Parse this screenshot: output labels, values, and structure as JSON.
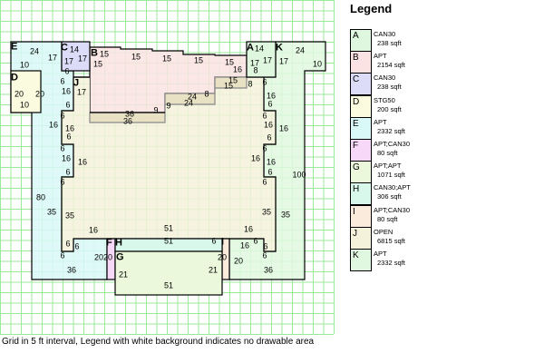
{
  "legend": {
    "title": "Legend",
    "items": [
      {
        "letter": "A",
        "use": "CAN30",
        "area": "238 sqft",
        "color": "#dff7df"
      },
      {
        "letter": "B",
        "use": "APT",
        "area": "2154 sqft",
        "color": "#fbe3e3"
      },
      {
        "letter": "C",
        "use": "CAN30",
        "area": "238 sqft",
        "color": "#dcdcf8"
      },
      {
        "letter": "D",
        "use": "STG50",
        "area": "200 sqft",
        "color": "#fbfbdf"
      },
      {
        "letter": "E",
        "use": "APT",
        "area": "2332 sqft",
        "color": "#d9f8f8"
      },
      {
        "letter": "F",
        "use": "APT;CAN30",
        "area": "80 sqft",
        "color": "#f8d8f8"
      },
      {
        "letter": "G",
        "use": "APT;APT",
        "area": "1071 sqft",
        "color": "#ecf8dc"
      },
      {
        "letter": "H",
        "use": "CAN30;APT",
        "area": "306 sqft",
        "color": "#d8f8ec"
      },
      {
        "letter": "I",
        "use": "APT;CAN30",
        "area": "80 sqft",
        "color": "#fbebdc"
      },
      {
        "letter": "J",
        "use": "OPEN",
        "area": "6815 sqft",
        "color": "#f4f2da"
      },
      {
        "letter": "K",
        "use": "APT",
        "area": "2332 sqft",
        "color": "#e0f8e0"
      }
    ]
  },
  "labels": [
    "E",
    "24",
    "17",
    "10",
    "C",
    "14",
    "17",
    "17",
    "6",
    "B",
    "15",
    "15",
    "15",
    "15",
    "D",
    "20",
    "20",
    "10",
    "6",
    "J",
    "16",
    "17",
    "6",
    "36",
    "9",
    "9",
    "36",
    "6",
    "16",
    "16",
    "6",
    "15",
    "15",
    "16",
    "A",
    "14",
    "17",
    "17",
    "8",
    "K",
    "24",
    "17",
    "10",
    "15",
    "15",
    "8",
    "24",
    "8",
    "24",
    "6",
    "16",
    "6",
    "6",
    "16",
    "16",
    "6",
    "6",
    "16",
    "16",
    "6",
    "6",
    "80",
    "35",
    "35",
    "16",
    "51",
    "6",
    "6",
    "6",
    "F",
    "H",
    "20",
    "20",
    "G",
    "36",
    "21",
    "51",
    "51",
    "6",
    "16",
    "16",
    "6",
    "6",
    "100",
    "35",
    "35",
    "16",
    "6",
    "16",
    "6",
    "6",
    "6",
    "I",
    "20",
    "20",
    "21",
    "36"
  ],
  "footer": "Grid in 5 ft interval, Legend with white background  indicates no drawable area"
}
